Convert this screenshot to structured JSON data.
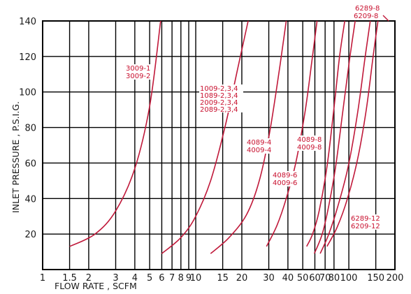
{
  "colors": {
    "curve": "#c0193a",
    "label": "#c8102e",
    "grid": "#000000",
    "background": "#ffffff"
  },
  "chart_data": {
    "type": "line",
    "title": "",
    "xlabel": "FLOW RATE , SCFM",
    "ylabel": "INLET PRESSURE , P.S.I.G.",
    "x_scale": "log",
    "xlim": [
      1,
      200
    ],
    "ylim": [
      0,
      140
    ],
    "x_ticks": [
      1,
      1.5,
      2,
      3,
      4,
      5,
      6,
      7,
      8,
      9,
      10,
      15,
      20,
      30,
      40,
      50,
      60,
      70,
      80,
      100,
      150,
      200
    ],
    "x_tick_labels": [
      "1",
      "1.5",
      "2",
      "3",
      "4",
      "5",
      "6",
      "7",
      "8",
      "9",
      "10",
      "15",
      "20",
      "30",
      "40",
      "50",
      "60",
      "70",
      "80",
      "100",
      "150",
      "200"
    ],
    "y_ticks": [
      20,
      40,
      60,
      80,
      100,
      120,
      140
    ],
    "y_tick_labels": [
      "20",
      "40",
      "60",
      "80",
      "100",
      "120",
      "140"
    ],
    "grid": true,
    "series": [
      {
        "labels": [
          "3009-1",
          "3009-2"
        ],
        "x": [
          1.5,
          2.2,
          3.0,
          4.0,
          5.0,
          5.9
        ],
        "y": [
          13,
          20,
          33,
          57,
          92,
          140
        ]
      },
      {
        "labels": [
          "1009-2,3,4",
          "1089-2,3,4",
          "2009-2,3,4",
          "2089-2,3,4"
        ],
        "x": [
          6.0,
          8.0,
          10.0,
          12.5,
          15.5,
          19.0,
          22.0
        ],
        "y": [
          9,
          18,
          30,
          50,
          80,
          115,
          140
        ]
      },
      {
        "labels": [
          "4089-4",
          "4009-4"
        ],
        "x": [
          12.5,
          16.5,
          21.5,
          26.0,
          30.5,
          35.5,
          39.0
        ],
        "y": [
          9,
          18,
          31,
          50,
          78,
          115,
          140
        ]
      },
      {
        "labels": [
          "4089-6",
          "4009-6"
        ],
        "x": [
          29.0,
          34.0,
          39.0,
          45.0,
          52.0,
          57.5,
          62.0
        ],
        "y": [
          13,
          25,
          40,
          60,
          90,
          118,
          140
        ]
      },
      {
        "labels": [],
        "x": [
          53.0,
          58.0,
          64.0,
          72.0,
          80.0,
          87.0,
          94.0
        ],
        "y": [
          13,
          20,
          33,
          58,
          91,
          120,
          140
        ]
      },
      {
        "labels": [
          "4089-8",
          "4009-8"
        ],
        "x": [
          59.5,
          67.0,
          74.0,
          82.0,
          91.0,
          101.0,
          110.0
        ],
        "y": [
          9,
          20,
          36,
          58,
          88,
          118,
          140
        ]
      },
      {
        "labels": [
          "6289-12",
          "6209-12"
        ],
        "x": [
          65.0,
          74.0,
          85.0,
          99.0,
          114.0,
          127.0,
          138.0
        ],
        "y": [
          9,
          20,
          36,
          58,
          88,
          118,
          140
        ]
      },
      {
        "labels": [],
        "x": [
          72.0,
          84.0,
          98.0,
          114.0,
          130.0,
          144.0,
          155.0
        ],
        "y": [
          13,
          24,
          40,
          62,
          90,
          120,
          140
        ]
      }
    ],
    "top_labels": [
      "6289-8",
      "6209-8"
    ]
  }
}
